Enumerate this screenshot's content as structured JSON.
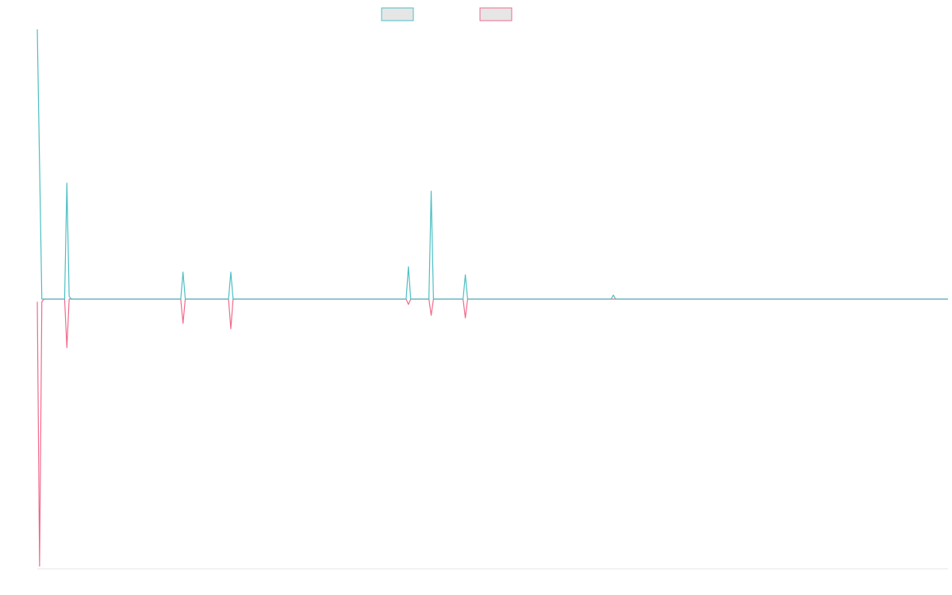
{
  "colors": {
    "series_1": "#4bbfc3",
    "series_2": "#f06a8c",
    "swatch_fill": "#e6e6e6",
    "axis": "#e5e5e5"
  },
  "chart_data": {
    "type": "line",
    "title": "",
    "xlabel": "",
    "ylabel": "",
    "grid": false,
    "legend_position": "top-center",
    "xlim": [
      0,
      200
    ],
    "ylim": [
      -100,
      100
    ],
    "series": [
      {
        "color": "#4bbfc3",
        "points": [
          [
            0,
            100
          ],
          [
            1,
            0
          ],
          [
            6,
            0
          ],
          [
            6.5,
            43
          ],
          [
            7,
            1
          ],
          [
            7.5,
            0
          ],
          [
            31.5,
            0
          ],
          [
            32,
            10
          ],
          [
            32.5,
            0
          ],
          [
            42,
            0
          ],
          [
            42.5,
            10
          ],
          [
            43,
            0
          ],
          [
            81,
            0
          ],
          [
            81.5,
            12
          ],
          [
            82,
            0
          ],
          [
            86,
            0
          ],
          [
            86.5,
            40
          ],
          [
            87,
            0
          ],
          [
            93.5,
            0
          ],
          [
            94,
            9
          ],
          [
            94.5,
            0
          ],
          [
            126,
            0
          ],
          [
            126.5,
            1.5
          ],
          [
            127,
            0
          ],
          [
            200,
            0
          ]
        ]
      },
      {
        "color": "#f06a8c",
        "points": [
          [
            0,
            -1
          ],
          [
            0.5,
            -99
          ],
          [
            1,
            -1
          ],
          [
            1.5,
            0
          ],
          [
            6,
            0
          ],
          [
            6.5,
            -18
          ],
          [
            7,
            0
          ],
          [
            31.5,
            0
          ],
          [
            32,
            -9
          ],
          [
            32.5,
            0
          ],
          [
            42,
            0
          ],
          [
            42.5,
            -11
          ],
          [
            43,
            0
          ],
          [
            81,
            0
          ],
          [
            81.5,
            -2
          ],
          [
            82,
            0
          ],
          [
            86,
            0
          ],
          [
            86.5,
            -6
          ],
          [
            87,
            0
          ],
          [
            93.5,
            0
          ],
          [
            94,
            -7
          ],
          [
            94.5,
            0
          ],
          [
            200,
            0
          ]
        ]
      }
    ]
  }
}
